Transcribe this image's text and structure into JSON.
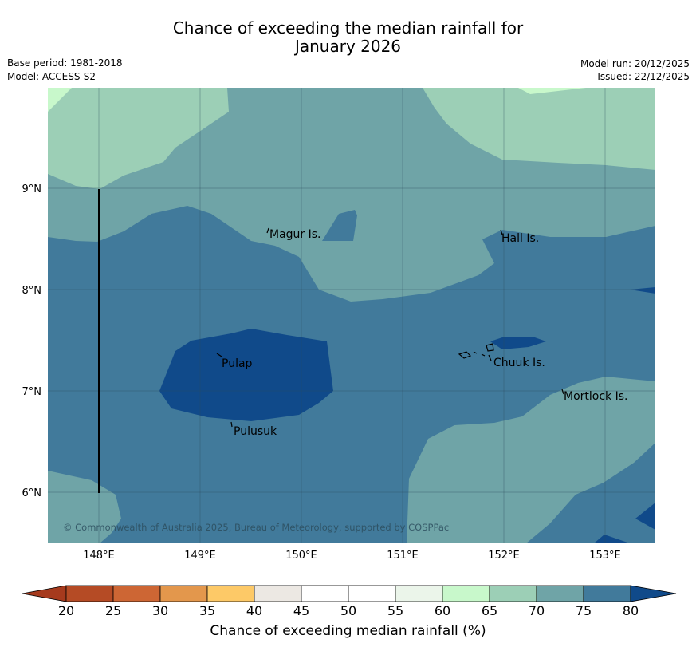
{
  "header": {
    "title_line1": "Chance of exceeding the median rainfall for",
    "title_line2": "January 2026",
    "base_period": "Base period: 1981-2018",
    "model": "Model: ACCESS-S2",
    "model_run": "Model run: 20/12/2025",
    "issued": "Issued: 22/12/2025"
  },
  "map": {
    "lat_labels": [
      "9°N",
      "8°N",
      "7°N",
      "6°N"
    ],
    "lon_labels": [
      "148°E",
      "149°E",
      "150°E",
      "151°E",
      "152°E",
      "153°E"
    ],
    "places": [
      "Magur Is.",
      "Hall Is.",
      "Pulap",
      "Chuuk Is.",
      "Mortlock Is.",
      "Pulusuk"
    ],
    "copyright": "© Commonwealth of Australia 2025, Bureau of Meteorology, supported by COSPPac"
  },
  "colorbar": {
    "ticks": [
      "20",
      "25",
      "30",
      "35",
      "40",
      "45",
      "50",
      "55",
      "60",
      "65",
      "70",
      "75",
      "80"
    ],
    "colors": [
      "#a63a1d",
      "#b54b25",
      "#cd6634",
      "#e3974c",
      "#fdc967",
      "#ece8e3",
      "#ffffff",
      "#ffffff",
      "#ebf5ea",
      "#c8f8cb",
      "#9ccfb6",
      "#6fa4a7",
      "#417a9b",
      "#104a8a"
    ],
    "label": "Chance of exceeding median rainfall (%)"
  }
}
